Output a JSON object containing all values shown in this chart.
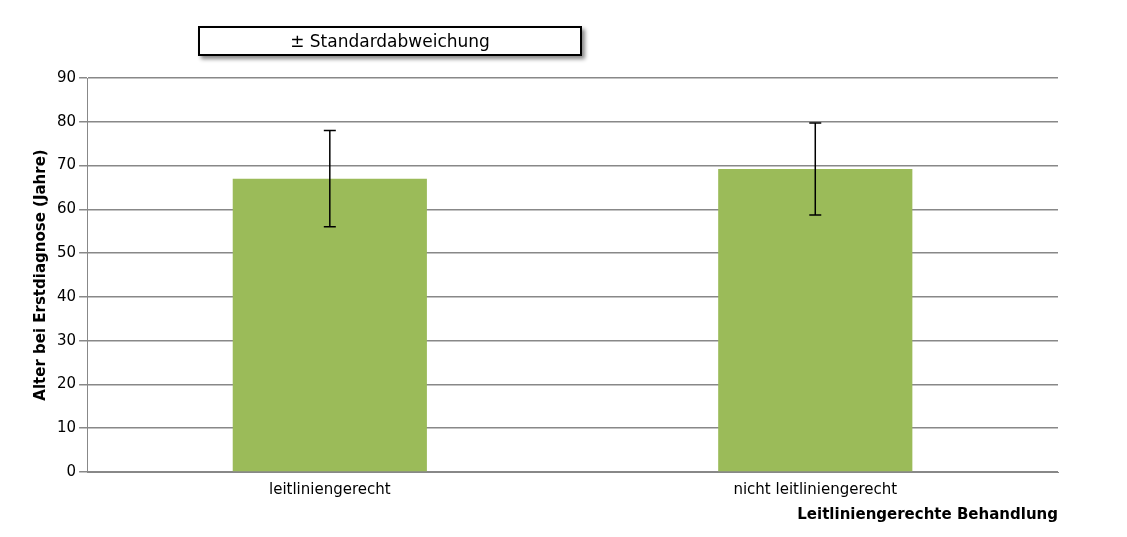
{
  "chart_data": {
    "type": "bar",
    "categories": [
      "leitliniengerecht",
      "nicht leitliniengerecht"
    ],
    "values": [
      67,
      69.2
    ],
    "errors": [
      11,
      10.5
    ],
    "color": "#9bbb59",
    "ylabel": "Alter bei Erstdiagnose (Jahre)",
    "xlabel": "Leitliniengerechte Behandlung",
    "ylim": [
      0,
      90
    ],
    "yticks": [
      0,
      10,
      20,
      30,
      40,
      50,
      60,
      70,
      80,
      90
    ],
    "grid": "y",
    "annotations": [
      "± Standardabweichung"
    ]
  }
}
